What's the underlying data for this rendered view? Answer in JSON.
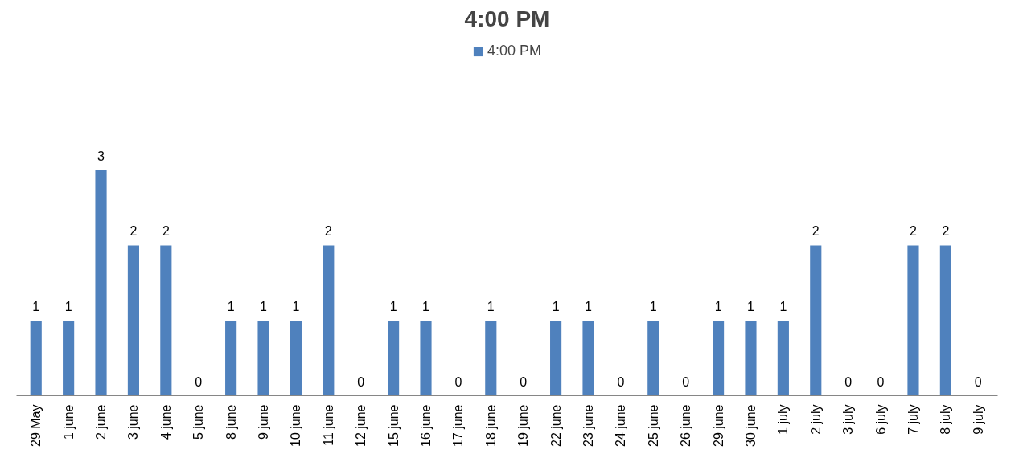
{
  "chart_data": {
    "type": "bar",
    "title": "4:00 PM",
    "categories": [
      "29 May",
      "1 june",
      "2 june",
      "3 june",
      "4 june",
      "5 june",
      "8 june",
      "9 june",
      "10 june",
      "11 june",
      "12 june",
      "15 june",
      "16 june",
      "17 june",
      "18 june",
      "19 june",
      "22 june",
      "23 june",
      "24 june",
      "25 june",
      "26 june",
      "29 june",
      "30 june",
      "1 july",
      "2 july",
      "3 july",
      "6 july",
      "7 july",
      "8 july",
      "9 july"
    ],
    "series": [
      {
        "name": "4:00 PM",
        "color": "#4f81bd",
        "values": [
          1,
          1,
          3,
          2,
          2,
          0,
          1,
          1,
          1,
          2,
          0,
          1,
          1,
          0,
          1,
          0,
          1,
          1,
          0,
          1,
          0,
          1,
          1,
          1,
          2,
          0,
          0,
          2,
          2,
          0
        ]
      }
    ],
    "data_labels": true,
    "legend": "top",
    "grid": false,
    "tick_labels": "x"
  }
}
